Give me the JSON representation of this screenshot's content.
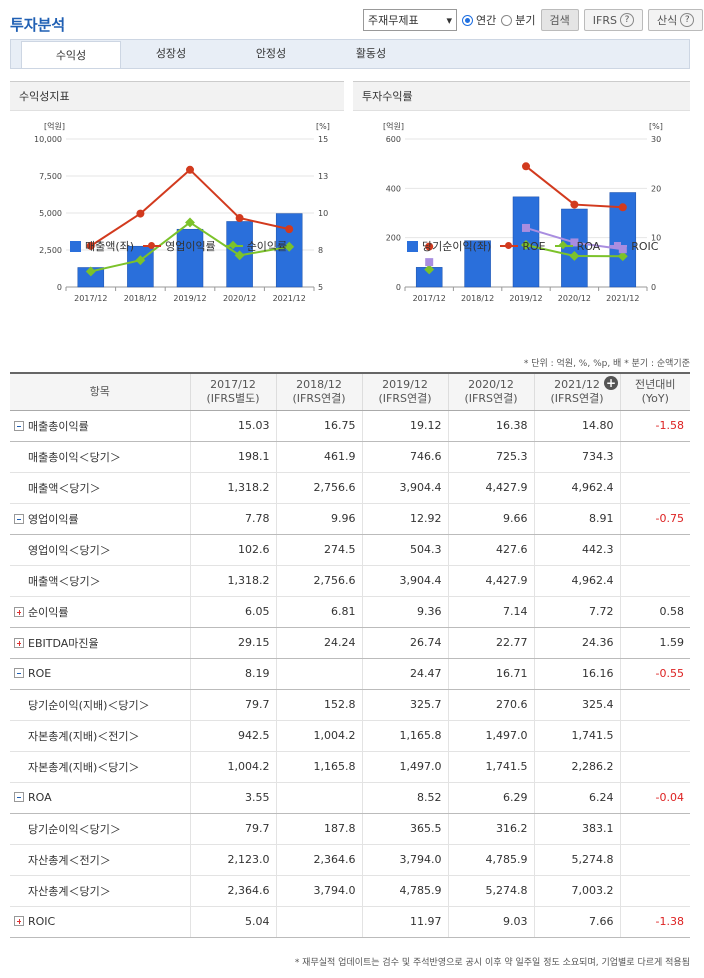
{
  "title": "투자분석",
  "controls": {
    "report_select": "주재무제표",
    "radio_annual": "연간",
    "radio_quarter": "분기",
    "search_button": "검색",
    "ifrs_button": "IFRS",
    "formula_button": "산식"
  },
  "tabs": [
    "수익성",
    "성장성",
    "안정성",
    "활동성"
  ],
  "left_chart": {
    "header": "수익성지표",
    "left_unit": "[억원]",
    "right_unit": "[%]",
    "left_ticks": [
      "10,000",
      "7,500",
      "5,000",
      "2,500",
      "0"
    ],
    "right_ticks": [
      "15",
      "13",
      "10",
      "8",
      "5"
    ],
    "legend": [
      "매출액(좌)",
      "영업이익률",
      "순이익률"
    ]
  },
  "right_chart": {
    "header": "투자수익률",
    "left_unit": "[억원]",
    "right_unit": "[%]",
    "left_ticks": [
      "600",
      "400",
      "200",
      "0"
    ],
    "right_ticks": [
      "30",
      "20",
      "10",
      "0"
    ],
    "legend": [
      "당기순이익(좌)",
      "ROE",
      "ROA",
      "ROIC"
    ]
  },
  "chart_data": [
    {
      "type": "bar",
      "title": "수익성지표",
      "categories": [
        "2017/12",
        "2018/12",
        "2019/12",
        "2020/12",
        "2021/12"
      ],
      "ylim": [
        0,
        10000
      ],
      "y2lim": [
        5,
        15
      ],
      "series": [
        {
          "name": "매출액(좌)",
          "type": "bar",
          "axis": "left",
          "color": "#2a6fdb",
          "values": [
            1318.2,
            2756.6,
            3904.4,
            4427.9,
            4962.4
          ]
        },
        {
          "name": "영업이익률",
          "type": "line",
          "axis": "right",
          "color": "#d23a1e",
          "values": [
            7.78,
            9.96,
            12.92,
            9.66,
            8.91
          ]
        },
        {
          "name": "순이익률",
          "type": "line",
          "axis": "right",
          "color": "#7cc22a",
          "values": [
            6.05,
            6.81,
            9.36,
            7.14,
            7.72
          ]
        }
      ]
    },
    {
      "type": "bar",
      "title": "투자수익률",
      "categories": [
        "2017/12",
        "2018/12",
        "2019/12",
        "2020/12",
        "2021/12"
      ],
      "ylim": [
        0,
        600
      ],
      "y2lim": [
        0,
        30
      ],
      "series": [
        {
          "name": "당기순이익(좌)",
          "type": "bar",
          "axis": "left",
          "color": "#2a6fdb",
          "values": [
            79.7,
            187.8,
            365.5,
            316.2,
            383.1
          ]
        },
        {
          "name": "ROE",
          "type": "line",
          "axis": "right",
          "color": "#d23a1e",
          "values": [
            8.19,
            null,
            24.47,
            16.71,
            16.16
          ]
        },
        {
          "name": "ROA",
          "type": "line",
          "axis": "right",
          "color": "#7cc22a",
          "values": [
            3.55,
            null,
            8.52,
            6.29,
            6.24
          ]
        },
        {
          "name": "ROIC",
          "type": "line",
          "axis": "right",
          "color": "#a98de0",
          "values": [
            5.04,
            null,
            11.97,
            9.03,
            7.66
          ]
        }
      ]
    }
  ],
  "unit_note": "* 단위 : 억원, %, %p, 배   * 분기 : 순액기준",
  "table": {
    "headers": [
      {
        "top": "항목",
        "bottom": ""
      },
      {
        "top": "2017/12",
        "bottom": "(IFRS별도)"
      },
      {
        "top": "2018/12",
        "bottom": "(IFRS연결)"
      },
      {
        "top": "2019/12",
        "bottom": "(IFRS연결)"
      },
      {
        "top": "2020/12",
        "bottom": "(IFRS연결)"
      },
      {
        "top": "2021/12",
        "bottom": "(IFRS연결)"
      },
      {
        "top": "전년대비",
        "bottom": "(YoY)"
      }
    ],
    "rows": [
      {
        "label": "매출총이익률",
        "kind": "minus",
        "values": [
          "15.03",
          "16.75",
          "19.12",
          "16.38",
          "14.80",
          "-1.58"
        ]
      },
      {
        "label": "매출총이익＜당기＞",
        "kind": "sub",
        "values": [
          "198.1",
          "461.9",
          "746.6",
          "725.3",
          "734.3",
          ""
        ]
      },
      {
        "label": "매출액＜당기＞",
        "kind": "sub",
        "values": [
          "1,318.2",
          "2,756.6",
          "3,904.4",
          "4,427.9",
          "4,962.4",
          ""
        ]
      },
      {
        "label": "영업이익률",
        "kind": "minus",
        "values": [
          "7.78",
          "9.96",
          "12.92",
          "9.66",
          "8.91",
          "-0.75"
        ]
      },
      {
        "label": "영업이익＜당기＞",
        "kind": "sub",
        "values": [
          "102.6",
          "274.5",
          "504.3",
          "427.6",
          "442.3",
          ""
        ]
      },
      {
        "label": "매출액＜당기＞",
        "kind": "sub",
        "values": [
          "1,318.2",
          "2,756.6",
          "3,904.4",
          "4,427.9",
          "4,962.4",
          ""
        ]
      },
      {
        "label": "순이익률",
        "kind": "plus",
        "values": [
          "6.05",
          "6.81",
          "9.36",
          "7.14",
          "7.72",
          "0.58"
        ]
      },
      {
        "label": "EBITDA마진율",
        "kind": "plus",
        "values": [
          "29.15",
          "24.24",
          "26.74",
          "22.77",
          "24.36",
          "1.59"
        ]
      },
      {
        "label": "ROE",
        "kind": "minus",
        "values": [
          "8.19",
          "",
          "24.47",
          "16.71",
          "16.16",
          "-0.55"
        ]
      },
      {
        "label": "당기순이익(지배)＜당기＞",
        "kind": "sub",
        "values": [
          "79.7",
          "152.8",
          "325.7",
          "270.6",
          "325.4",
          ""
        ]
      },
      {
        "label": "자본총계(지배)＜전기＞",
        "kind": "sub",
        "values": [
          "942.5",
          "1,004.2",
          "1,165.8",
          "1,497.0",
          "1,741.5",
          ""
        ]
      },
      {
        "label": "자본총계(지배)＜당기＞",
        "kind": "sub",
        "values": [
          "1,004.2",
          "1,165.8",
          "1,497.0",
          "1,741.5",
          "2,286.2",
          ""
        ]
      },
      {
        "label": "ROA",
        "kind": "minus",
        "values": [
          "3.55",
          "",
          "8.52",
          "6.29",
          "6.24",
          "-0.04"
        ]
      },
      {
        "label": "당기순이익＜당기＞",
        "kind": "sub",
        "values": [
          "79.7",
          "187.8",
          "365.5",
          "316.2",
          "383.1",
          ""
        ]
      },
      {
        "label": "자산총계＜전기＞",
        "kind": "sub",
        "values": [
          "2,123.0",
          "2,364.6",
          "3,794.0",
          "4,785.9",
          "5,274.8",
          ""
        ]
      },
      {
        "label": "자산총계＜당기＞",
        "kind": "sub",
        "values": [
          "2,364.6",
          "3,794.0",
          "4,785.9",
          "5,274.8",
          "7,003.2",
          ""
        ]
      },
      {
        "label": "ROIC",
        "kind": "plus",
        "values": [
          "5.04",
          "",
          "11.97",
          "9.03",
          "7.66",
          "-1.38"
        ]
      }
    ]
  },
  "footnote": "* 재무실적 업데이트는 검수 및 주석반영으로 공시 이후 약 일주일 정도 소요되며, 기업별로 다르게 적용됨"
}
